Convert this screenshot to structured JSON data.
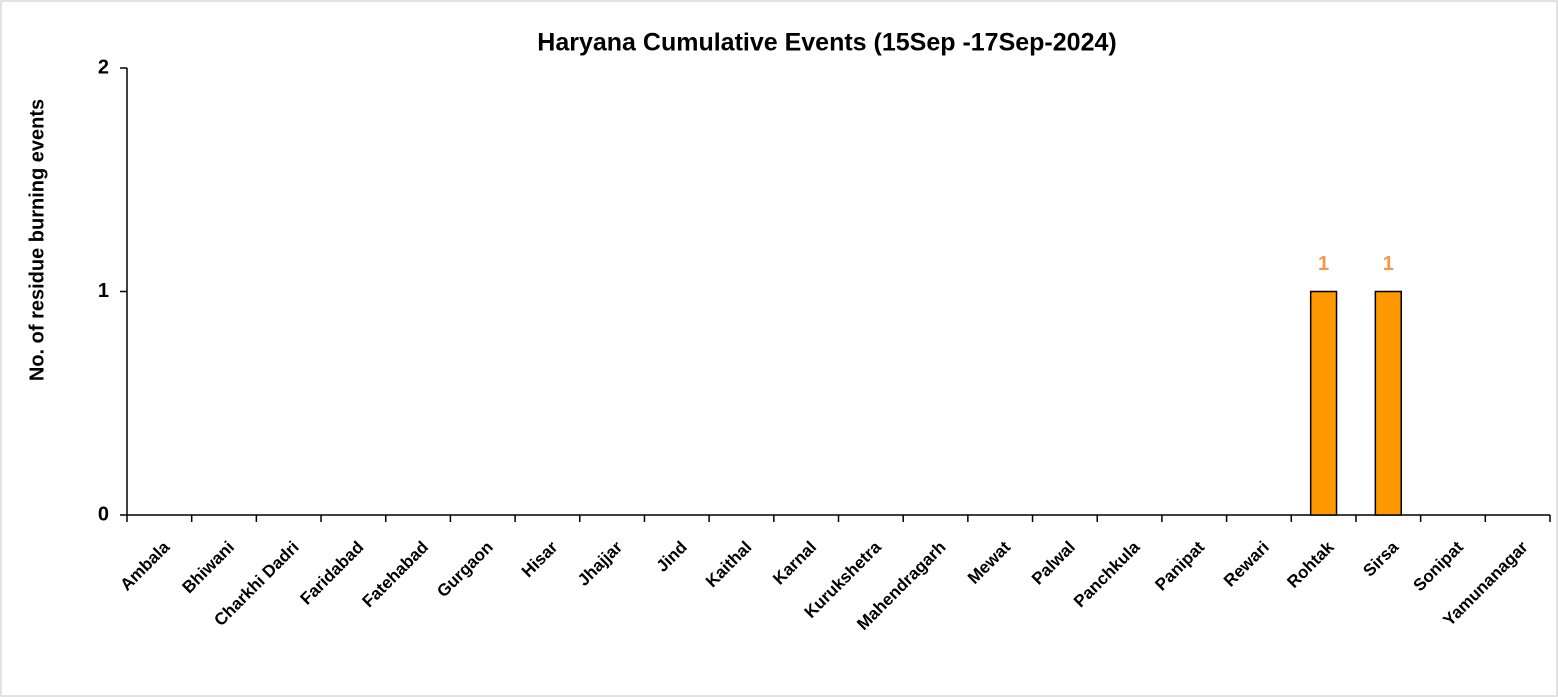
{
  "chart_data": {
    "type": "bar",
    "title": "Haryana Cumulative Events (15Sep -17Sep-2024)",
    "y_label": "No. of residue burning events",
    "categories": [
      "Ambala",
      "Bhiwani",
      "Charkhi Dadri",
      "Faridabad",
      "Fatehabad",
      "Gurgaon",
      "Hisar",
      "Jhajjar",
      "Jind",
      "Kaithal",
      "Karnal",
      "Kurukshetra",
      "Mahendragarh",
      "Mewat",
      "Palwal",
      "Panchkula",
      "Panipat",
      "Rewari",
      "Rohtak",
      "Sirsa",
      "Sonipat",
      "Yamunanagar"
    ],
    "values": [
      0,
      0,
      0,
      0,
      0,
      0,
      0,
      0,
      0,
      0,
      0,
      0,
      0,
      0,
      0,
      0,
      0,
      0,
      1,
      1,
      0,
      0
    ],
    "color": "#ff9900",
    "label_color": "#f79646",
    "ylim": [
      0,
      2
    ],
    "yticks": [
      0,
      1,
      2
    ],
    "grid": false
  }
}
